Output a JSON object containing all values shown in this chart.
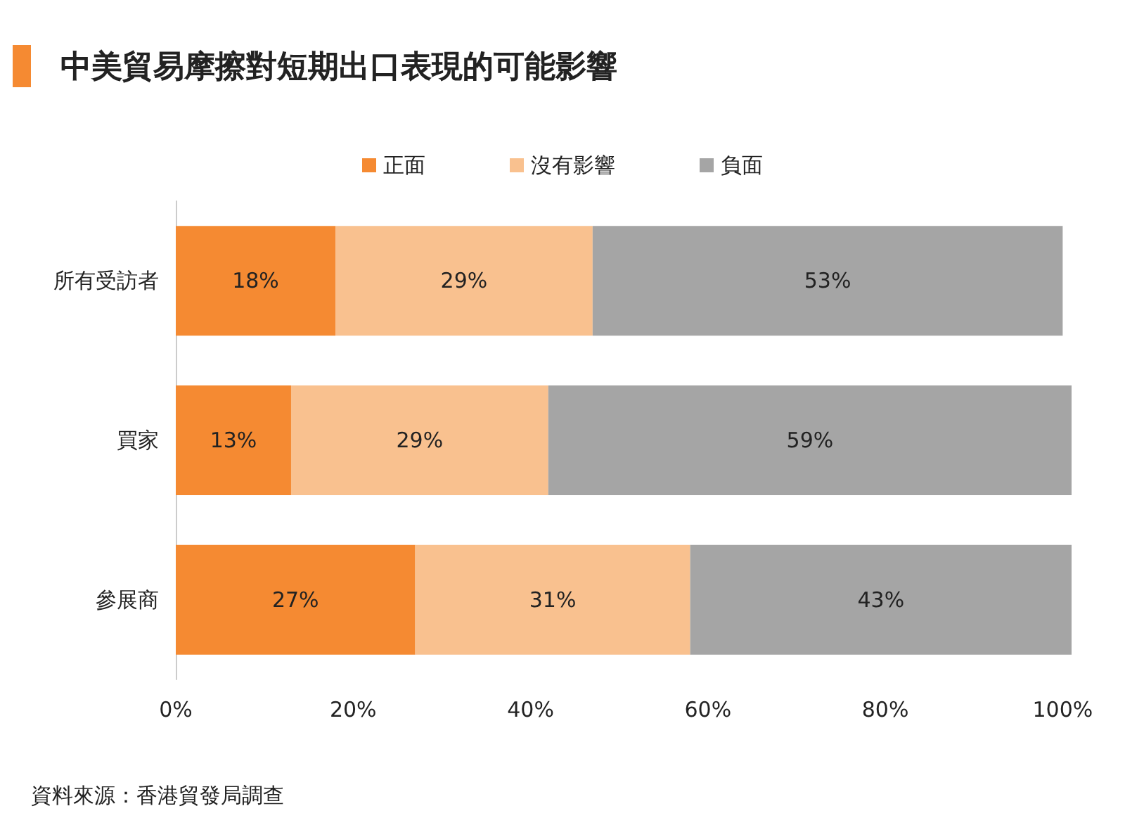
{
  "chart_data": {
    "type": "bar",
    "orientation": "horizontal",
    "stacked": true,
    "title": "中美貿易摩擦對短期出口表現的可能影響",
    "categories": [
      "所有受訪者",
      "買家",
      "參展商"
    ],
    "series": [
      {
        "name": "正面",
        "color": "#f58a32",
        "values": [
          18,
          13,
          27
        ],
        "value_labels": [
          "18%",
          "13%",
          "27%"
        ]
      },
      {
        "name": "沒有影響",
        "color": "#f9c18f",
        "values": [
          29,
          29,
          31
        ],
        "value_labels": [
          "29%",
          "29%",
          "31%"
        ]
      },
      {
        "name": "負面",
        "color": "#a5a5a5",
        "values": [
          53,
          59,
          43
        ],
        "value_labels": [
          "53%",
          "59%",
          "43%"
        ]
      }
    ],
    "xlim": [
      0,
      101
    ],
    "xticks": [
      {
        "value": 0,
        "label": "0%"
      },
      {
        "value": 20,
        "label": "20%"
      },
      {
        "value": 40,
        "label": "40%"
      },
      {
        "value": 60,
        "label": "60%"
      },
      {
        "value": 80,
        "label": "80%"
      },
      {
        "value": 100,
        "label": "100%"
      }
    ],
    "legend": "top",
    "grid": false,
    "annotations": [
      "資料來源：香港貿發局調查"
    ]
  }
}
